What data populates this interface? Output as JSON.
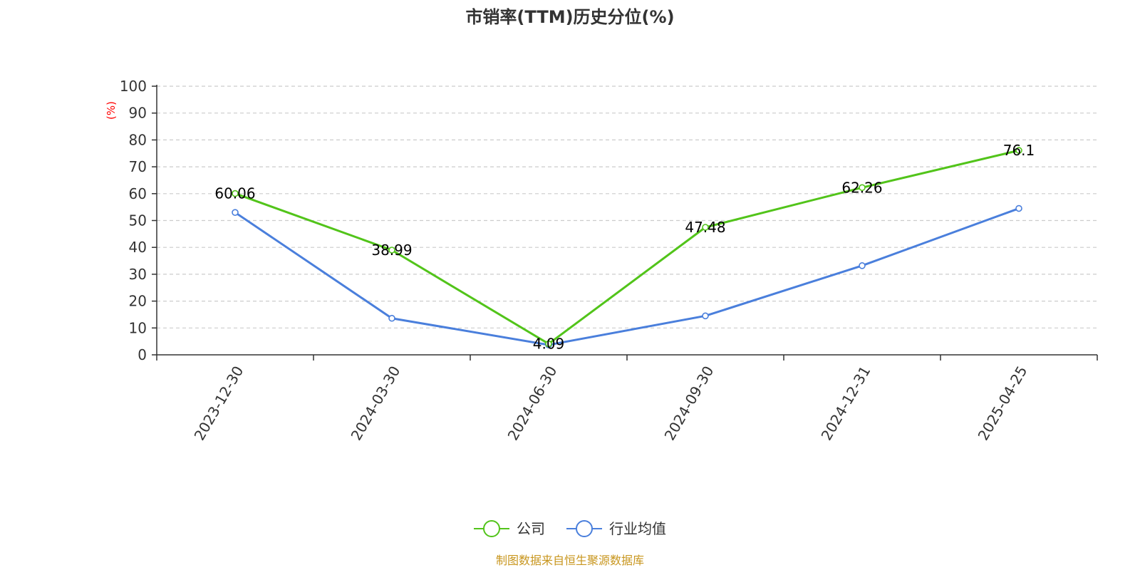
{
  "chart_data": {
    "type": "line",
    "title": "市销率(TTM)历史分位(%)",
    "ylabel": "(%)",
    "xlabel": "",
    "ylim": [
      0,
      100
    ],
    "yticks": [
      0,
      10,
      20,
      30,
      40,
      50,
      60,
      70,
      80,
      90,
      100
    ],
    "categories": [
      "2023-12-30",
      "2024-03-30",
      "2024-06-30",
      "2024-09-30",
      "2024-12-31",
      "2025-04-25"
    ],
    "grid": true,
    "legend_position": "bottom",
    "series": [
      {
        "name": "公司",
        "color": "#52c41a",
        "values": [
          60.06,
          38.99,
          4.09,
          47.48,
          62.26,
          76.1
        ],
        "data_labels": [
          "60.06",
          "38.99",
          "4.09",
          "47.48",
          "62.26",
          "76.1"
        ]
      },
      {
        "name": "行业均值",
        "color": "#4a7fdc",
        "values": [
          53,
          13.6,
          3.7,
          14.5,
          33.2,
          54.5
        ]
      }
    ],
    "unit_label_color": "#ff0000",
    "source": "制图数据来自恒生聚源数据库",
    "source_color": "#c8961e"
  }
}
